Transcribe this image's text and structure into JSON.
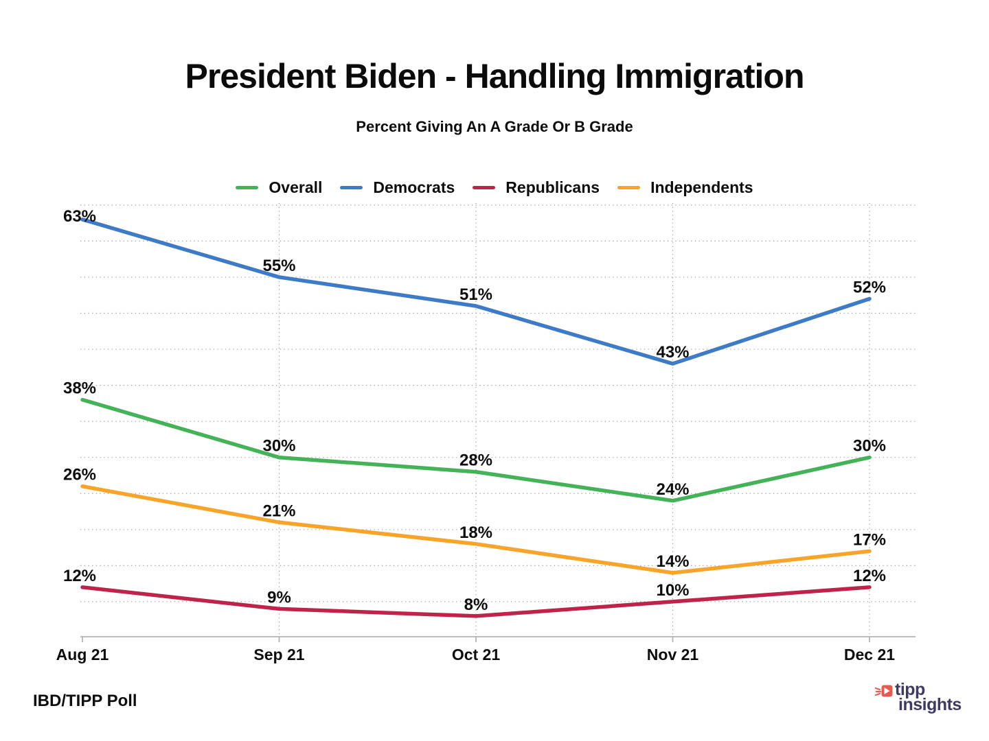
{
  "title": "President Biden - Handling Immigration",
  "subtitle": "Percent Giving An A Grade Or B Grade",
  "footer": {
    "source_label": "IBD/TIPP Poll"
  },
  "logo": {
    "line1": "tipp",
    "line2": "insights",
    "text_color": "#3e3b63",
    "accent_color": "#e9594e"
  },
  "chart_data": {
    "type": "line",
    "title": "President Biden - Handling Immigration",
    "subtitle": "Percent Giving An A Grade Or B Grade",
    "categories": [
      "Aug 21",
      "Sep 21",
      "Oct 21",
      "Nov 21",
      "Dec 21"
    ],
    "series": [
      {
        "name": "Overall",
        "color": "#44b257",
        "values": [
          38,
          30,
          28,
          24,
          30
        ]
      },
      {
        "name": "Democrats",
        "color": "#3d7bc7",
        "values": [
          63,
          55,
          51,
          43,
          52
        ]
      },
      {
        "name": "Republicans",
        "color": "#c02349",
        "values": [
          12,
          9,
          8,
          10,
          12
        ]
      },
      {
        "name": "Independents",
        "color": "#f8a428",
        "values": [
          26,
          21,
          18,
          14,
          17
        ]
      }
    ],
    "value_suffix": "%",
    "data_labels": true,
    "ylim": [
      5,
      65
    ],
    "gridline_step": 5,
    "grid_style": "dotted",
    "legend_position": "top",
    "axis_color": "#b3b3b3",
    "grid_color": "#9c9c9c",
    "label_color": "#0d0d0d"
  }
}
